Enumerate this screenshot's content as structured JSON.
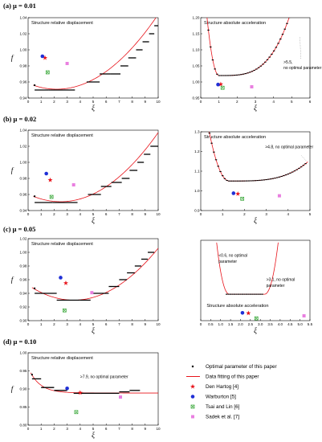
{
  "rows": [
    {
      "label": "(a)",
      "mu": "μ = 0.01"
    },
    {
      "label": "(b)",
      "mu": "μ = 0.02"
    },
    {
      "label": "(c)",
      "mu": "μ = 0.05"
    },
    {
      "label": "(d)",
      "mu": "μ = 0.10"
    }
  ],
  "legend": [
    {
      "text": "Optimal parameter of this paper",
      "marker": "dot"
    },
    {
      "text": "Data fitting of this paper",
      "marker": "line"
    },
    {
      "text": "Den Hartog",
      "ref": "[4]",
      "marker": "star"
    },
    {
      "text": "Warburton",
      "ref": "[5]",
      "marker": "circle"
    },
    {
      "text": "Tsai and Lin",
      "ref": "[6]",
      "marker": "xbox"
    },
    {
      "text": "Sadek et al.",
      "ref": "[7]",
      "marker": "box"
    }
  ],
  "colors": {
    "optimal": "#000000",
    "fit": "#e8141b",
    "den_hartog": "#e8141b",
    "warburton": "#1f2fd6",
    "tsai_lin": "#3aa83a",
    "sadek": "#e97fe0"
  },
  "chart_data": [
    {
      "id": "a-disp",
      "type": "scatter",
      "title": "Structure relative displacement",
      "xlabel": "ξ",
      "ylabel": "f",
      "xlim": [
        0,
        10
      ],
      "ylim": [
        0.94,
        1.04
      ],
      "xticks": [
        "0",
        "1",
        "2",
        "3",
        "4",
        "5",
        "6",
        "7",
        "8",
        "9",
        "10"
      ],
      "yticks": [
        "0.94",
        "0.96",
        "0.98",
        "1.00",
        "1.02",
        "1.04"
      ],
      "fit": {
        "kind": "quad",
        "x0": 2.2,
        "y0": 0.951,
        "a": 0.00153,
        "from": 0.4,
        "to": 10
      },
      "steps": [
        [
          0.5,
          1.6,
          0.95
        ],
        [
          1.6,
          3.6,
          0.95
        ],
        [
          4.5,
          5.5,
          0.96
        ],
        [
          5.5,
          6.3,
          0.97
        ],
        [
          6.3,
          7.1,
          0.97
        ],
        [
          7.1,
          7.7,
          0.98
        ],
        [
          7.7,
          8.3,
          0.99
        ],
        [
          8.3,
          8.8,
          1.0
        ],
        [
          8.8,
          9.3,
          1.01
        ],
        [
          9.3,
          9.7,
          1.02
        ],
        [
          9.7,
          10,
          1.03
        ]
      ],
      "den_hartog": [
        1.3,
        0.99
      ],
      "warburton": [
        1.1,
        0.992
      ],
      "tsai_lin": [
        1.5,
        0.972
      ],
      "sadek": [
        3.0,
        0.983
      ],
      "annotations": []
    },
    {
      "id": "a-acc",
      "type": "scatter",
      "title": "Structure absolute acceleration",
      "xlabel": "ξ",
      "ylabel": "",
      "xlim": [
        0,
        6
      ],
      "ylim": [
        0.95,
        1.2
      ],
      "xticks": [
        "0",
        "1",
        "2",
        "3",
        "4",
        "5",
        "6"
      ],
      "yticks": [
        "0.95",
        "1.00",
        "1.05",
        "1.10",
        "1.15",
        "1.20"
      ],
      "fit": {
        "kind": "bowl",
        "xmin": 1.0,
        "ymin": 1.02,
        "k1": 0.07,
        "k2": 0.0016,
        "p": 3.5,
        "from": 0.2,
        "to": 5.9
      },
      "steps_auto": {
        "from": 0.3,
        "to": 5.5,
        "step": 0.12
      },
      "den_hartog": [
        1.1,
        0.993
      ],
      "warburton": [
        0.95,
        0.992
      ],
      "tsai_lin": [
        1.2,
        0.982
      ],
      "sadek": [
        2.8,
        0.985
      ],
      "annotations": [
        {
          "text": ">5.5,",
          "x": 4.55,
          "y": 1.058
        },
        {
          "text": "no optimal parameter",
          "x": 4.55,
          "y": 1.04
        }
      ],
      "guide": [
        [
          5.45,
          1.14
        ],
        [
          5.5,
          1.07
        ]
      ]
    },
    {
      "id": "b-disp",
      "type": "scatter",
      "title": "Structure relative displacement",
      "xlabel": "ξ",
      "ylabel": "f",
      "xlim": [
        0,
        10
      ],
      "ylim": [
        0.94,
        1.04
      ],
      "xticks": [
        "0",
        "1",
        "2",
        "3",
        "4",
        "5",
        "6",
        "7",
        "8",
        "9",
        "10"
      ],
      "yticks": [
        "0.94",
        "0.96",
        "0.98",
        "1.00",
        "1.02",
        "1.04"
      ],
      "fit": {
        "kind": "quad",
        "x0": 2.5,
        "y0": 0.951,
        "a": 0.00153,
        "from": 0.4,
        "to": 10
      },
      "steps": [
        [
          0.5,
          1.9,
          0.95
        ],
        [
          1.9,
          3.8,
          0.95
        ],
        [
          4.6,
          5.6,
          0.96
        ],
        [
          5.6,
          6.4,
          0.97
        ],
        [
          6.4,
          7.2,
          0.975
        ],
        [
          7.2,
          7.8,
          0.98
        ],
        [
          7.8,
          8.4,
          0.99
        ],
        [
          8.4,
          8.9,
          1.0
        ],
        [
          8.9,
          9.4,
          1.01
        ],
        [
          9.4,
          10,
          1.02
        ]
      ],
      "den_hartog": [
        1.7,
        0.978
      ],
      "warburton": [
        1.4,
        0.986
      ],
      "tsai_lin": [
        1.8,
        0.957
      ],
      "sadek": [
        3.5,
        0.972
      ],
      "annotations": []
    },
    {
      "id": "b-acc",
      "type": "scatter",
      "title": "Structure absolute acceleration",
      "xlabel": "ξ",
      "ylabel": "",
      "xlim": [
        0,
        5
      ],
      "ylim": [
        0.9,
        1.3
      ],
      "xticks": [
        "0",
        "1",
        "2",
        "3",
        "4",
        "5"
      ],
      "yticks": [
        "0.9",
        "1.0",
        "1.1",
        "1.2",
        "1.3"
      ],
      "fit": {
        "kind": "bowl",
        "xmin": 1.3,
        "ymin": 1.05,
        "k1": 0.05,
        "k2": 0.0011,
        "p": 3.5,
        "from": 0.15,
        "to": 4.9
      },
      "steps_auto": {
        "from": 0.3,
        "to": 4.8,
        "step": 0.1
      },
      "den_hartog": [
        1.7,
        0.985
      ],
      "warburton": [
        1.5,
        0.988
      ],
      "tsai_lin": [
        1.9,
        0.96
      ],
      "sadek": [
        3.6,
        0.975
      ],
      "annotations": [
        {
          "text": ">4.8, no optimal parameter",
          "x": 2.95,
          "y": 1.216
        }
      ],
      "guide": [
        [
          4.6,
          1.18
        ],
        [
          4.85,
          1.15
        ]
      ]
    },
    {
      "id": "c-disp",
      "type": "scatter",
      "title": "Structure relative displacement",
      "xlabel": "ξ",
      "ylabel": "f",
      "xlim": [
        0,
        10
      ],
      "ylim": [
        0.9,
        1.02
      ],
      "xticks": [
        "0",
        "1",
        "2",
        "3",
        "4",
        "5",
        "6",
        "7",
        "8",
        "9",
        "10"
      ],
      "yticks": [
        "0.90",
        "0.92",
        "0.94",
        "0.96",
        "0.98",
        "1.00",
        "1.02"
      ],
      "fit": {
        "kind": "quad",
        "x0": 3.5,
        "y0": 0.93,
        "a": 0.0018,
        "from": 0.3,
        "to": 10
      },
      "steps": [
        [
          0.5,
          2.2,
          0.94
        ],
        [
          2.2,
          4.0,
          0.93
        ],
        [
          4.0,
          4.8,
          0.93
        ],
        [
          5.0,
          6.2,
          0.94
        ],
        [
          6.2,
          7.0,
          0.95
        ],
        [
          7.0,
          7.6,
          0.96
        ],
        [
          7.6,
          8.2,
          0.97
        ],
        [
          8.2,
          8.7,
          0.98
        ],
        [
          8.7,
          9.2,
          0.99
        ],
        [
          9.2,
          9.7,
          1.0
        ]
      ],
      "den_hartog": [
        2.9,
        0.955
      ],
      "warburton": [
        2.5,
        0.963
      ],
      "tsai_lin": [
        2.8,
        0.915
      ],
      "sadek": [
        4.9,
        0.941
      ],
      "annotations": []
    },
    {
      "id": "c-acc",
      "type": "scatter",
      "title": "Structure absolute acceleration",
      "xlabel": "ξ",
      "ylabel": "",
      "xlim": [
        0,
        5.5
      ],
      "ylim": [
        0.9,
        1.6
      ],
      "xticks": [
        "0",
        "0.5",
        "1.0",
        "1.5",
        "2.0",
        "2.5",
        "3.0",
        "3.5",
        "4.0",
        "4.5",
        "5.0",
        "5.5"
      ],
      "yticks": [],
      "fit": {
        "kind": "u",
        "from": 0.8,
        "to": 3.9,
        "ymin": 1.13,
        "left": 0.8,
        "right": 3.9,
        "flatL": 1.45,
        "flatR": 3.2,
        "top": 1.58
      },
      "steps_auto": {
        "from": 1.3,
        "to": 3.15,
        "step": 0.1,
        "flat": 1.13
      },
      "den_hartog": [
        2.4,
        0.965
      ],
      "warburton": [
        2.1,
        0.968
      ],
      "tsai_lin": [
        2.8,
        0.92
      ],
      "sadek": [
        5.2,
        0.942
      ],
      "annotations": [
        {
          "text": "<0.6, no optimal",
          "x": 0.9,
          "y": 1.455
        },
        {
          "text": "parameter",
          "x": 0.9,
          "y": 1.405
        },
        {
          "text": ">3.1, no optimal",
          "x": 3.3,
          "y": 1.245
        },
        {
          "text": "parameter",
          "x": 3.3,
          "y": 1.195
        }
      ],
      "title_pos": [
        0.3,
        1.02
      ]
    },
    {
      "id": "d-disp",
      "type": "scatter",
      "title": "Structure relative displacement",
      "xlabel": "ξ",
      "ylabel": "f",
      "xlim": [
        0,
        10
      ],
      "ylim": [
        0.8,
        1.05
      ],
      "xticks": [
        "0",
        "1",
        "2",
        "3",
        "4",
        "5",
        "6",
        "7",
        "8",
        "9",
        "10"
      ],
      "yticks": [
        "0.80",
        "0.85",
        "0.90",
        "0.95",
        "1.00"
      ],
      "fit": {
        "kind": "decay",
        "base": 0.911,
        "amp": 0.089,
        "rate": 1.2,
        "from": 0.2,
        "to": 10
      },
      "steps": [
        [
          0.3,
          1.0,
          0.96
        ],
        [
          1.0,
          2.0,
          0.93
        ],
        [
          2.0,
          3.0,
          0.92
        ],
        [
          3.5,
          7.0,
          0.91
        ],
        [
          7.0,
          7.8,
          0.915
        ],
        [
          7.8,
          8.6,
          0.92
        ]
      ],
      "den_hartog": [
        4.0,
        0.912
      ],
      "warburton": [
        3.0,
        0.927
      ],
      "tsai_lin": [
        3.7,
        0.845
      ],
      "sadek": [
        7.1,
        0.897
      ],
      "annotations": [
        {
          "text": ">7.9, no optimal parameter",
          "x": 4.0,
          "y": 0.963
        }
      ]
    }
  ]
}
